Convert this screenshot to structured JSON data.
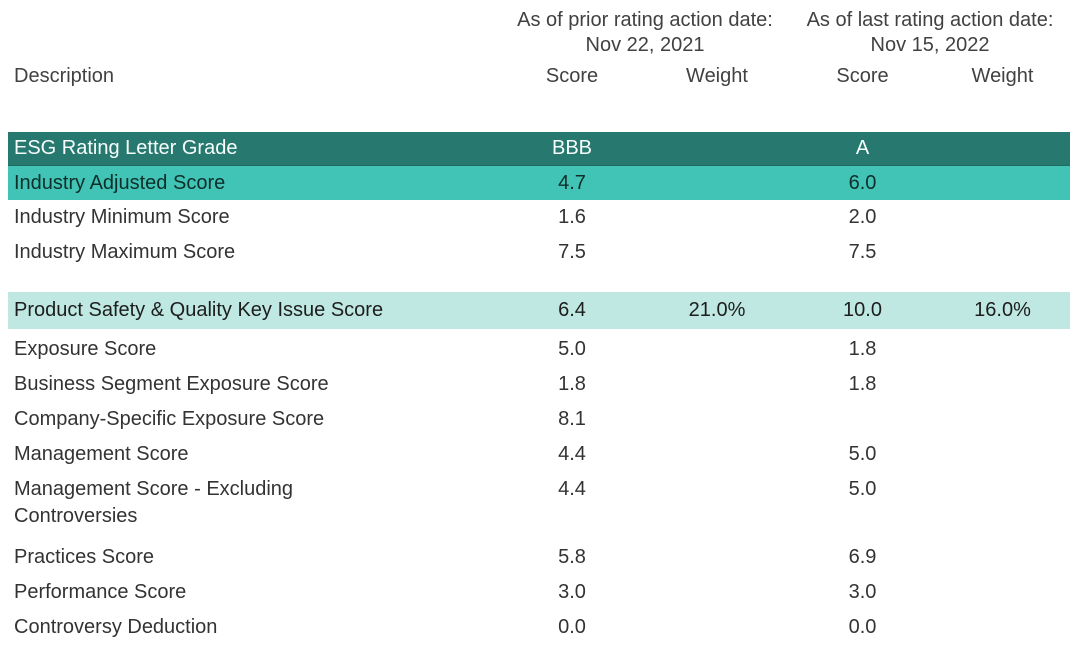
{
  "header": {
    "description_label": "Description",
    "groups": [
      {
        "title": "As of prior rating action date:",
        "date": "Nov 22, 2021",
        "score_label": "Score",
        "weight_label": "Weight"
      },
      {
        "title": "As of last rating action date:",
        "date": "Nov 15, 2022",
        "score_label": "Score",
        "weight_label": "Weight"
      }
    ]
  },
  "colors": {
    "dark_teal_row": "#27796f",
    "teal_row": "#41c4b5",
    "mint_row": "#bee8e1",
    "text": "#333333"
  },
  "rows": [
    {
      "label": "ESG Rating Letter Grade",
      "prior_score": "BBB",
      "prior_weight": "",
      "last_score": "A",
      "last_weight": ""
    },
    {
      "label": "Industry Adjusted Score",
      "prior_score": "4.7",
      "prior_weight": "",
      "last_score": "6.0",
      "last_weight": ""
    },
    {
      "label": "Industry Minimum Score",
      "prior_score": "1.6",
      "prior_weight": "",
      "last_score": "2.0",
      "last_weight": ""
    },
    {
      "label": "Industry Maximum Score",
      "prior_score": "7.5",
      "prior_weight": "",
      "last_score": "7.5",
      "last_weight": ""
    },
    {
      "label": "Product Safety & Quality Key Issue Score",
      "prior_score": "6.4",
      "prior_weight": "21.0%",
      "last_score": "10.0",
      "last_weight": "16.0%"
    },
    {
      "label": "Exposure Score",
      "prior_score": "5.0",
      "prior_weight": "",
      "last_score": "1.8",
      "last_weight": ""
    },
    {
      "label": "Business Segment Exposure Score",
      "prior_score": "1.8",
      "prior_weight": "",
      "last_score": "1.8",
      "last_weight": ""
    },
    {
      "label": "Company-Specific Exposure Score",
      "prior_score": "8.1",
      "prior_weight": "",
      "last_score": "",
      "last_weight": ""
    },
    {
      "label": "Management Score",
      "prior_score": "4.4",
      "prior_weight": "",
      "last_score": "5.0",
      "last_weight": ""
    },
    {
      "label": "Management Score - Excluding Controversies",
      "prior_score": "4.4",
      "prior_weight": "",
      "last_score": "5.0",
      "last_weight": ""
    },
    {
      "label": "Practices Score",
      "prior_score": "5.8",
      "prior_weight": "",
      "last_score": "6.9",
      "last_weight": ""
    },
    {
      "label": "Performance Score",
      "prior_score": "3.0",
      "prior_weight": "",
      "last_score": "3.0",
      "last_weight": ""
    },
    {
      "label": "Controversy Deduction",
      "prior_score": "0.0",
      "prior_weight": "",
      "last_score": "0.0",
      "last_weight": ""
    }
  ]
}
